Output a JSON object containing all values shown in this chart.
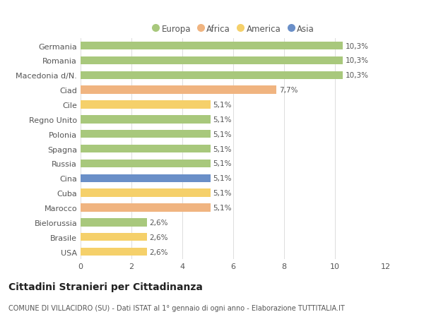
{
  "categories": [
    "Germania",
    "Romania",
    "Macedonia d/N.",
    "Ciad",
    "Cile",
    "Regno Unito",
    "Polonia",
    "Spagna",
    "Russia",
    "Cina",
    "Cuba",
    "Marocco",
    "Bielorussia",
    "Brasile",
    "USA"
  ],
  "values": [
    10.3,
    10.3,
    10.3,
    7.7,
    5.1,
    5.1,
    5.1,
    5.1,
    5.1,
    5.1,
    5.1,
    5.1,
    2.6,
    2.6,
    2.6
  ],
  "labels": [
    "10,3%",
    "10,3%",
    "10,3%",
    "7,7%",
    "5,1%",
    "5,1%",
    "5,1%",
    "5,1%",
    "5,1%",
    "5,1%",
    "5,1%",
    "5,1%",
    "2,6%",
    "2,6%",
    "2,6%"
  ],
  "colors": [
    "#a8c87c",
    "#a8c87c",
    "#a8c87c",
    "#f0b480",
    "#f5d06a",
    "#a8c87c",
    "#a8c87c",
    "#a8c87c",
    "#a8c87c",
    "#6a8fc8",
    "#f5d06a",
    "#f0b480",
    "#a8c87c",
    "#f5d06a",
    "#f5d06a"
  ],
  "legend_labels": [
    "Europa",
    "Africa",
    "America",
    "Asia"
  ],
  "legend_colors": [
    "#a8c87c",
    "#f0b480",
    "#f5d06a",
    "#6a8fc8"
  ],
  "title": "Cittadini Stranieri per Cittadinanza",
  "subtitle": "COMUNE DI VILLACIDRO (SU) - Dati ISTAT al 1° gennaio di ogni anno - Elaborazione TUTTITALIA.IT",
  "xlim": [
    0,
    12
  ],
  "xticks": [
    0,
    2,
    4,
    6,
    8,
    10,
    12
  ],
  "background_color": "#ffffff",
  "grid_color": "#dddddd",
  "bar_height": 0.55,
  "label_fontsize": 7.5,
  "tick_fontsize": 8,
  "legend_fontsize": 8.5,
  "title_fontsize": 10,
  "subtitle_fontsize": 7
}
